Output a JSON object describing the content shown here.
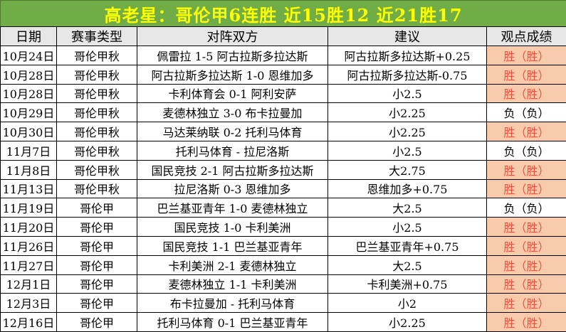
{
  "title": "高老星：哥伦甲6连胜  近15胜12  近21胜17",
  "colors": {
    "title_bg": "#70AD47",
    "title_text": "#FFFF00",
    "header_bg": "#E7E7E7",
    "win_bg": "#F8CBAC",
    "win_text": "#FB4B3A",
    "loss_text": "#000000",
    "border": "#000000"
  },
  "table": {
    "headers": [
      "日期",
      "赛事类型",
      "对阵双方",
      "建议",
      "观点成绩"
    ],
    "rows": [
      {
        "date": "10月24日",
        "league": "哥伦甲秋",
        "match": "佩雷拉 1-5 阿古拉斯多拉达斯",
        "tip": "阿古拉斯多拉达斯+0.25",
        "result": "胜（胜）",
        "status": "win"
      },
      {
        "date": "10月28日",
        "league": "哥伦甲秋",
        "match": "阿古拉斯多拉达斯 1-0 恩维加多",
        "tip": "阿古拉斯多拉达斯-0.75",
        "result": "胜（胜）",
        "status": "win"
      },
      {
        "date": "10月28日",
        "league": "哥伦甲秋",
        "match": "卡利体育会 0-1 阿利安萨",
        "tip": "小2.5",
        "result": "胜（胜）",
        "status": "win"
      },
      {
        "date": "10月29日",
        "league": "哥伦甲秋",
        "match": "麦德林独立 3-0 布卡拉曼加",
        "tip": "小2.25",
        "result": "负（负）",
        "status": "loss"
      },
      {
        "date": "10月30日",
        "league": "哥伦甲秋",
        "match": "马达莱纳联 0-2 托利马体育",
        "tip": "小2.25",
        "result": "胜（胜）",
        "status": "win"
      },
      {
        "date": "11月7日",
        "league": "哥伦甲秋",
        "match": "托利马体育 - 拉尼洛斯",
        "tip": "小2.5",
        "result": "负（负）",
        "status": "loss"
      },
      {
        "date": "11月8日",
        "league": "哥伦甲秋",
        "match": "国民竞技 2-1 阿古拉斯多拉达斯",
        "tip": "大2.75",
        "result": "胜（胜）",
        "status": "win"
      },
      {
        "date": "11月13日",
        "league": "哥伦甲秋",
        "match": "拉尼洛斯 0-3 恩维加多",
        "tip": "恩维加多+0.75",
        "result": "胜（胜）",
        "status": "win"
      },
      {
        "date": "11月19日",
        "league": "哥伦甲",
        "match": "巴兰基亚青年 1-0 麦德林独立",
        "tip": "大2.5",
        "result": "负（负）",
        "status": "loss"
      },
      {
        "date": "11月20日",
        "league": "哥伦甲",
        "match": "国民竞技 1-0 卡利美洲",
        "tip": "小2.5",
        "result": "胜（胜）",
        "status": "win"
      },
      {
        "date": "11月26日",
        "league": "哥伦甲",
        "match": "国民竞技 1-1 巴兰基亚青年",
        "tip": "巴兰基亚青年+0.75",
        "result": "胜（胜）",
        "status": "win"
      },
      {
        "date": "11月27日",
        "league": "哥伦甲",
        "match": "卡利美洲 2-1 麦德林独立",
        "tip": "大2.5",
        "result": "胜（胜）",
        "status": "win"
      },
      {
        "date": "12月1日",
        "league": "哥伦甲",
        "match": "麦德林独立 1-1 卡利美洲",
        "tip": "卡利美洲+0.75",
        "result": "胜（胜）",
        "status": "win"
      },
      {
        "date": "12月3日",
        "league": "哥伦甲",
        "match": "布卡拉曼加 - 托利马体育",
        "tip": "小2",
        "result": "胜（胜）",
        "status": "win"
      },
      {
        "date": "12月16日",
        "league": "哥伦甲",
        "match": "托利马体育 0-1 巴兰基亚青年",
        "tip": "小2.25",
        "result": "胜（胜）",
        "status": "win"
      }
    ]
  }
}
